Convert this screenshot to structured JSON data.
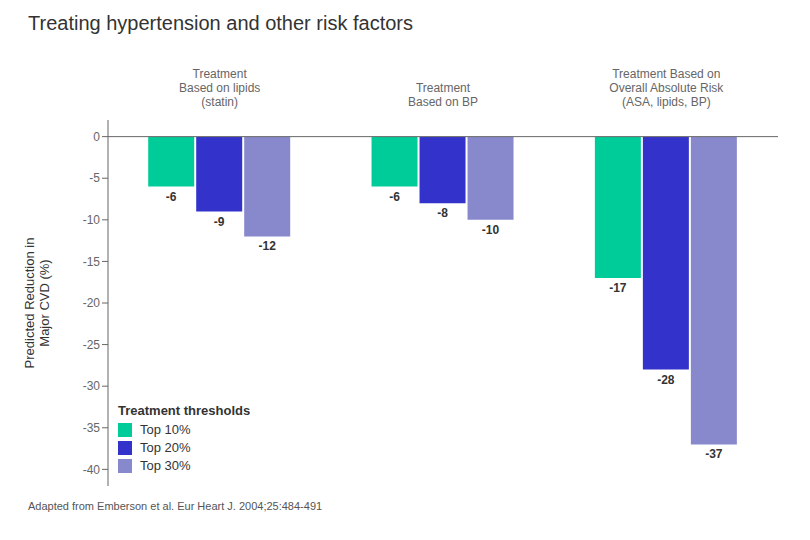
{
  "chart_data": {
    "type": "bar",
    "title": "Treating hypertension and other risk factors",
    "ylabel": "Predicted Reduction in\nMajor CVD (%)",
    "categories": [
      "Treatment\nBased on lipids\n(statin)",
      "Treatment\nBased on BP",
      "Treatment Based on\nOverall Absolute Risk\n(ASA, lipids, BP)"
    ],
    "series": [
      {
        "name": "Top 10%",
        "color": "#00cc99",
        "values": [
          -6,
          -6,
          -17
        ]
      },
      {
        "name": "Top 20%",
        "color": "#3333cc",
        "values": [
          -9,
          -8,
          -28
        ]
      },
      {
        "name": "Top 30%",
        "color": "#8888cc",
        "values": [
          -12,
          -10,
          -37
        ]
      }
    ],
    "ylim": [
      -42,
      2
    ],
    "yticks": [
      0,
      -5,
      -10,
      -15,
      -20,
      -25,
      -30,
      -35,
      -40
    ],
    "data_labels": true,
    "grid": false,
    "legend": "lower left",
    "legend_title": "Treatment thresholds",
    "annotations": [
      "Adapted from Emberson et al. Eur Heart J. 2004;25:484-491"
    ]
  }
}
